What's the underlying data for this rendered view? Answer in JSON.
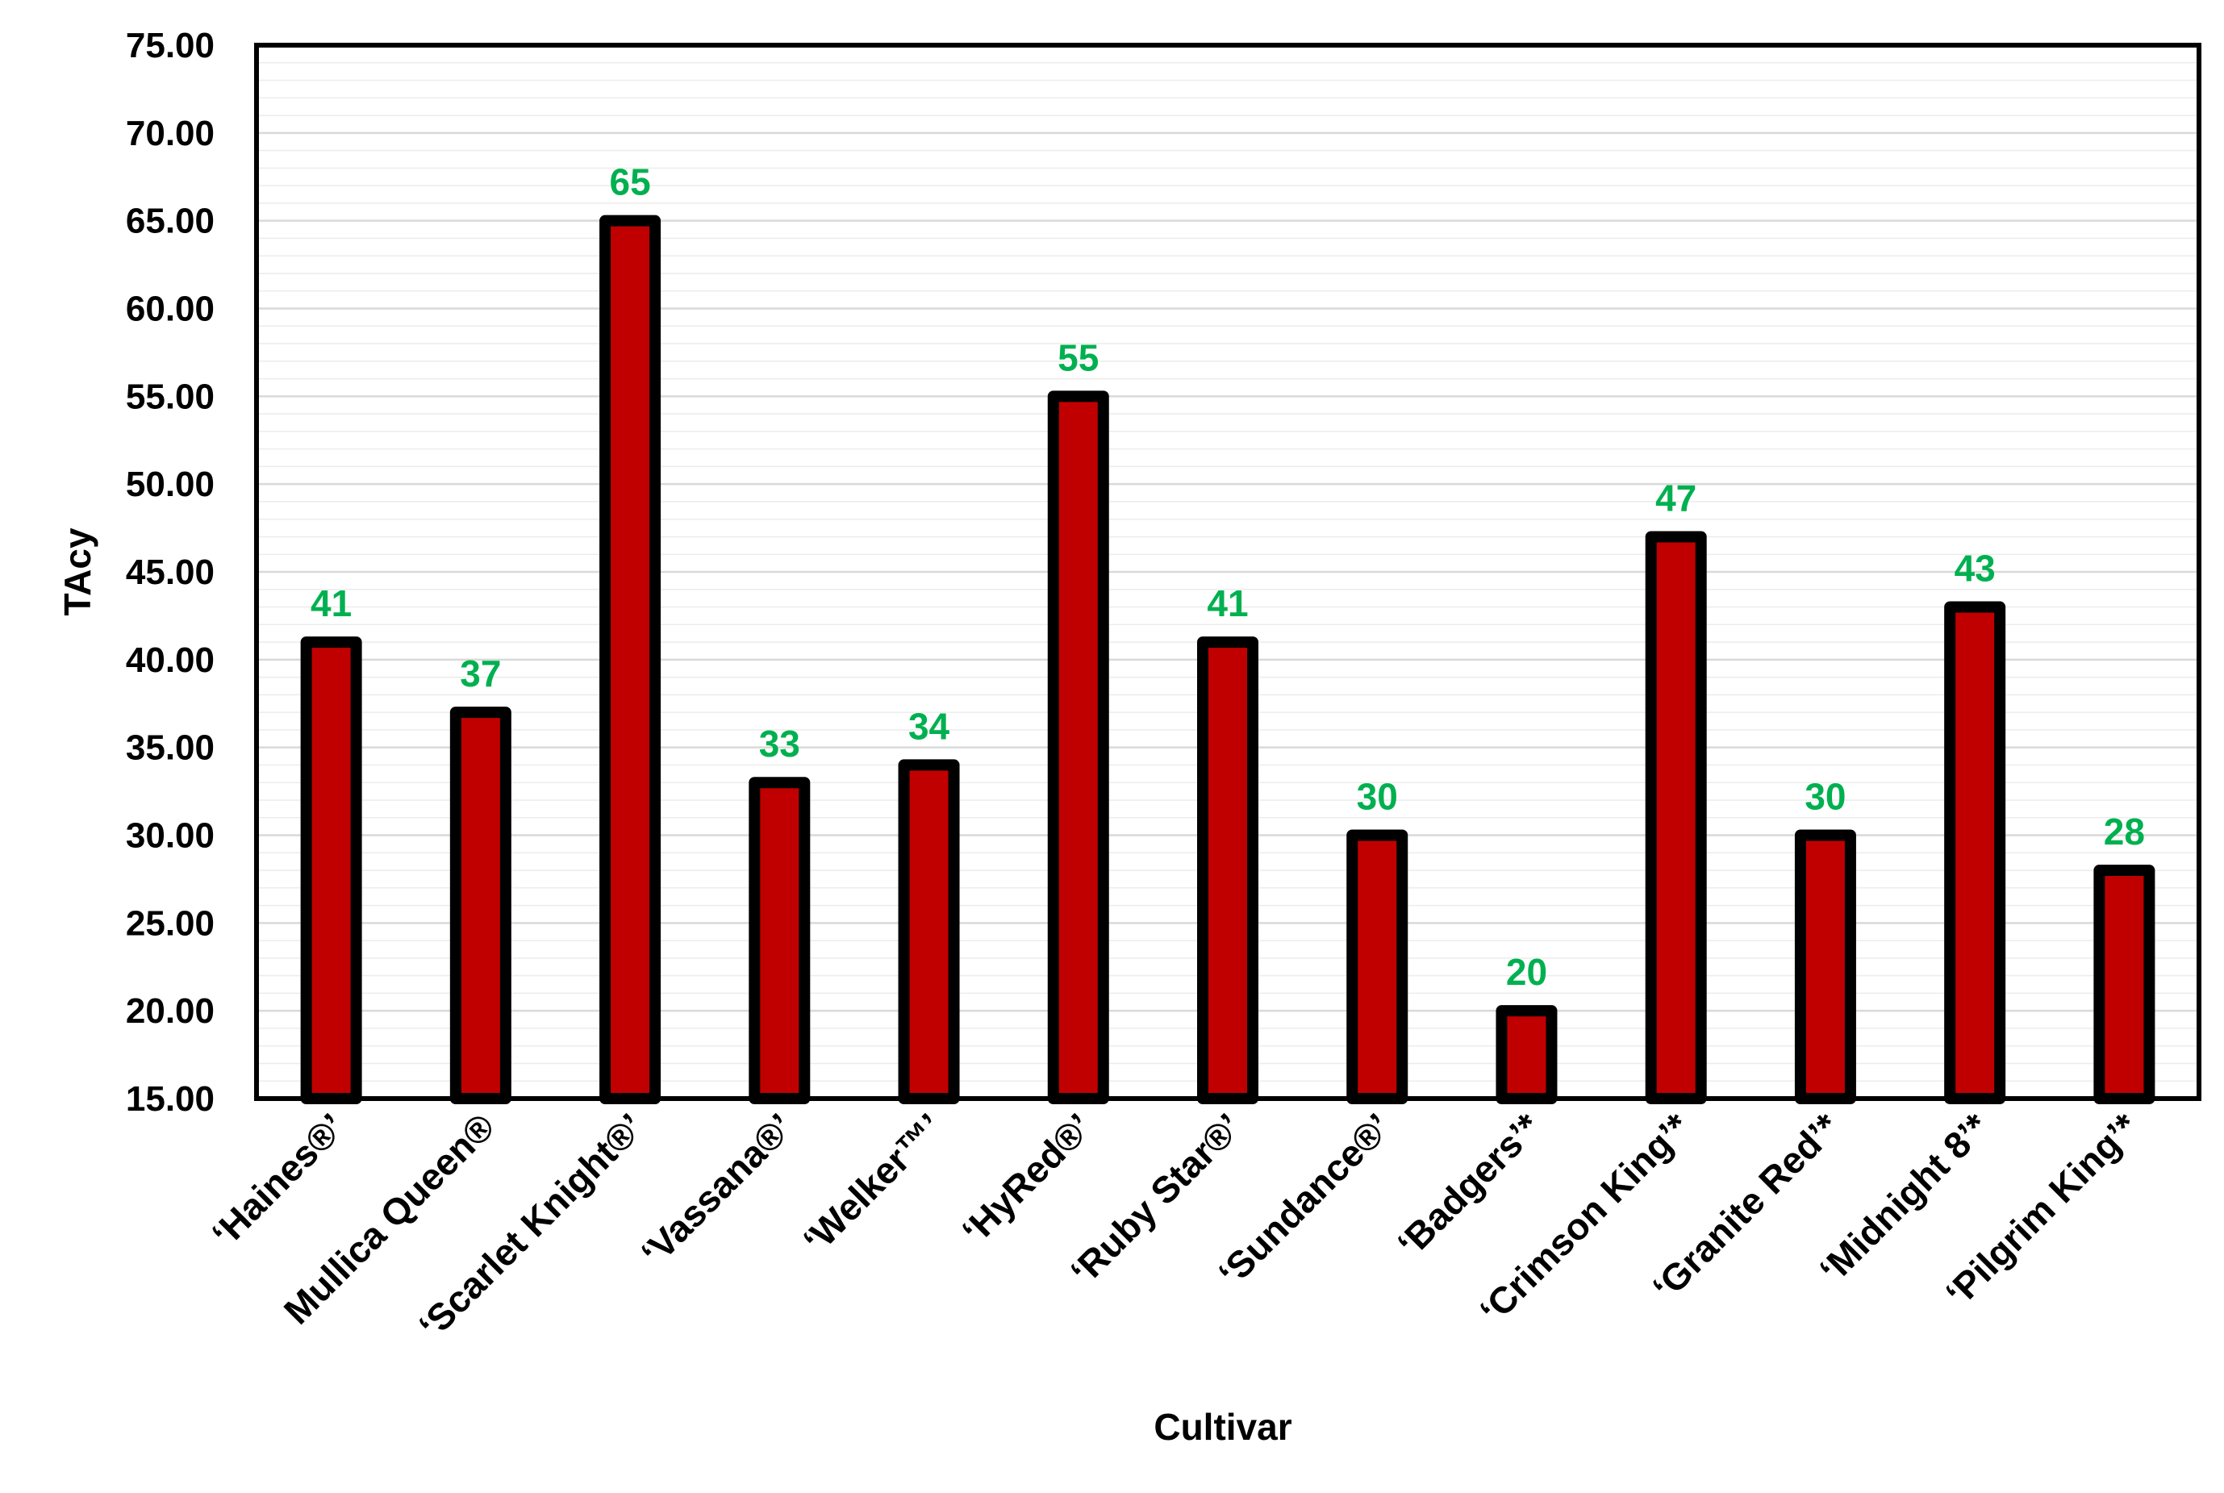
{
  "chart_data": {
    "type": "bar",
    "title": "",
    "xlabel": "Cultivar",
    "ylabel": "TAcy",
    "ylim": [
      15,
      75
    ],
    "ytick_step": 5,
    "ytick_decimals": 2,
    "minor_grid_step": 1,
    "grid": true,
    "legend": "none",
    "categories": [
      "‘Haines®’",
      "Mullica Queen®",
      "‘Scarlet Knight®’",
      "‘Vassana®’",
      "‘Welker™’",
      "‘HyRed®’",
      "‘Ruby Star®’",
      "‘Sundance®’",
      "‘Badgers’*",
      "‘Crimson King’*",
      "‘Granite Red’*",
      "‘Midnight 8’*",
      "‘Pilgrim King’*"
    ],
    "values": [
      41,
      37,
      65,
      33,
      34,
      55,
      41,
      30,
      20,
      47,
      30,
      43,
      28
    ],
    "data_labels": [
      "41",
      "37",
      "65",
      "33",
      "34",
      "55",
      "41",
      "30",
      "20",
      "47",
      "30",
      "43",
      "28"
    ],
    "colors": {
      "bar_fill": "#c00000",
      "bar_outline": "#000000",
      "data_label": "#00b050",
      "grid": "#d9d9d9",
      "axis": "#000000"
    }
  }
}
